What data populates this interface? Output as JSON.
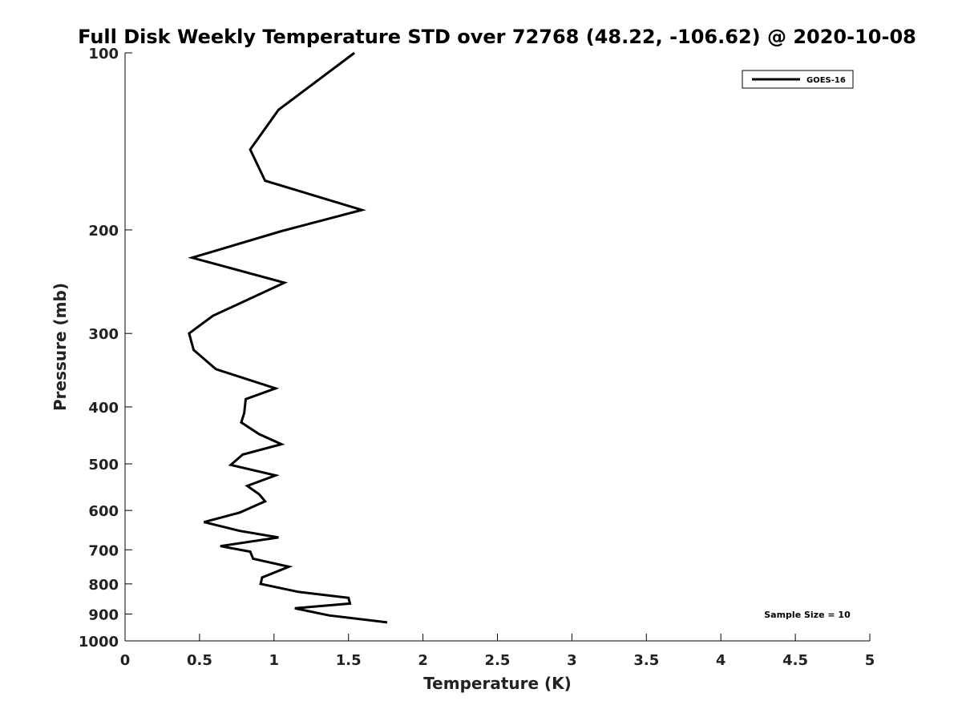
{
  "chart_data": {
    "type": "line",
    "title": "Full Disk Weekly Temperature STD over 72768 (48.22, -106.62) @ 2020-10-08",
    "xlabel": "Temperature (K)",
    "ylabel": "Pressure (mb)",
    "xlim": [
      0,
      5
    ],
    "ylim": [
      1000,
      100
    ],
    "yscale": "log",
    "y_reversed": true,
    "x_ticks": [
      "0",
      "0.5",
      "1",
      "1.5",
      "2",
      "2.5",
      "3",
      "3.5",
      "4",
      "4.5",
      "5"
    ],
    "y_ticks": [
      "100",
      "200",
      "300",
      "400",
      "500",
      "600",
      "700",
      "800",
      "900",
      "1000"
    ],
    "grid": false,
    "legend_position": "top-right",
    "annotation": "Sample Size = 10",
    "series": [
      {
        "name": "GOES-16",
        "color": "#000000",
        "points": [
          [
            1.54,
            100
          ],
          [
            1.03,
            125
          ],
          [
            0.84,
            146
          ],
          [
            0.94,
            165
          ],
          [
            1.59,
            185
          ],
          [
            1.05,
            201
          ],
          [
            0.45,
            223
          ],
          [
            1.07,
            246
          ],
          [
            0.59,
            280
          ],
          [
            0.43,
            300
          ],
          [
            0.46,
            320
          ],
          [
            0.61,
            345
          ],
          [
            1.01,
            372
          ],
          [
            0.81,
            388
          ],
          [
            0.8,
            410
          ],
          [
            0.78,
            425
          ],
          [
            0.9,
            445
          ],
          [
            1.05,
            463
          ],
          [
            0.79,
            482
          ],
          [
            0.71,
            502
          ],
          [
            1.01,
            523
          ],
          [
            0.82,
            545
          ],
          [
            0.9,
            563
          ],
          [
            0.94,
            579
          ],
          [
            0.77,
            605
          ],
          [
            0.53,
            628
          ],
          [
            0.77,
            650
          ],
          [
            1.03,
            667
          ],
          [
            0.64,
            690
          ],
          [
            0.84,
            705
          ],
          [
            0.86,
            725
          ],
          [
            1.1,
            748
          ],
          [
            0.92,
            780
          ],
          [
            0.91,
            800
          ],
          [
            1.16,
            825
          ],
          [
            1.5,
            845
          ],
          [
            1.51,
            864
          ],
          [
            1.14,
            880
          ],
          [
            1.37,
            905
          ],
          [
            1.76,
            930
          ]
        ]
      }
    ]
  }
}
